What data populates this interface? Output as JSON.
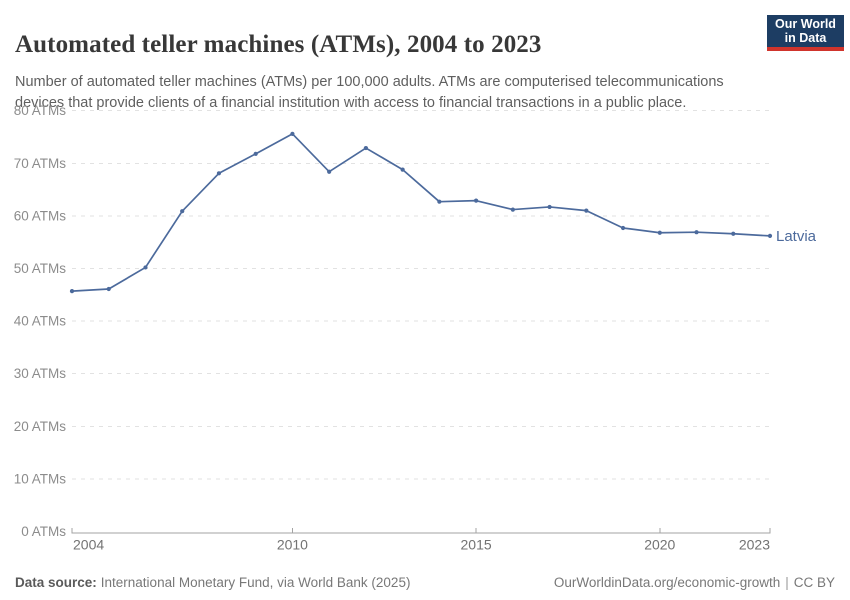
{
  "header": {
    "title": "Automated teller machines (ATMs), 2004 to 2023",
    "subtitle": "Number of automated teller machines (ATMs) per 100,000 adults. ATMs are computerised telecommunications devices that provide clients of a financial institution with access to financial transactions in a public place.",
    "logo_line1": "Our World",
    "logo_line2": "in Data"
  },
  "chart_data": {
    "type": "line",
    "title": "Automated teller machines (ATMs), 2004 to 2023",
    "ylabel": "",
    "xlabel": "",
    "xlim": [
      2004,
      2023
    ],
    "ylim": [
      0,
      80
    ],
    "grid": "horizontal-dashed",
    "legend_position": "end-of-line-label",
    "x_ticks": [
      2004,
      2010,
      2015,
      2020,
      2023
    ],
    "y_ticks": [
      {
        "value": 0,
        "label": "0 ATMs"
      },
      {
        "value": 10,
        "label": "10 ATMs"
      },
      {
        "value": 20,
        "label": "20 ATMs"
      },
      {
        "value": 30,
        "label": "30 ATMs"
      },
      {
        "value": 40,
        "label": "40 ATMs"
      },
      {
        "value": 50,
        "label": "50 ATMs"
      },
      {
        "value": 60,
        "label": "60 ATMs"
      },
      {
        "value": 70,
        "label": "70 ATMs"
      },
      {
        "value": 80,
        "label": "80 ATMs"
      }
    ],
    "x": [
      2004,
      2005,
      2006,
      2007,
      2008,
      2009,
      2010,
      2011,
      2012,
      2013,
      2014,
      2015,
      2016,
      2017,
      2018,
      2019,
      2020,
      2021,
      2022,
      2023
    ],
    "series": [
      {
        "name": "Latvia",
        "color": "#4c6a9c",
        "values": [
          45.7,
          46.1,
          50.2,
          60.9,
          68.1,
          71.8,
          75.6,
          68.4,
          72.9,
          68.8,
          62.7,
          62.9,
          61.2,
          61.7,
          61.0,
          57.7,
          56.8,
          56.9,
          56.6,
          56.2
        ]
      }
    ]
  },
  "footer": {
    "source_label": "Data source:",
    "source_text": "International Monetary Fund, via World Bank (2025)",
    "link_text": "OurWorldinData.org/economic-growth",
    "separator": "|",
    "license": "CC BY"
  },
  "colors": {
    "line": "#4c6a9c",
    "grid": "#e2e2e2",
    "axis": "#a3a3a3",
    "y_tick_label": "#8c8c8c",
    "x_tick_label": "#737373",
    "logo_bg": "#1d3d63",
    "logo_bar": "#d0342c"
  }
}
